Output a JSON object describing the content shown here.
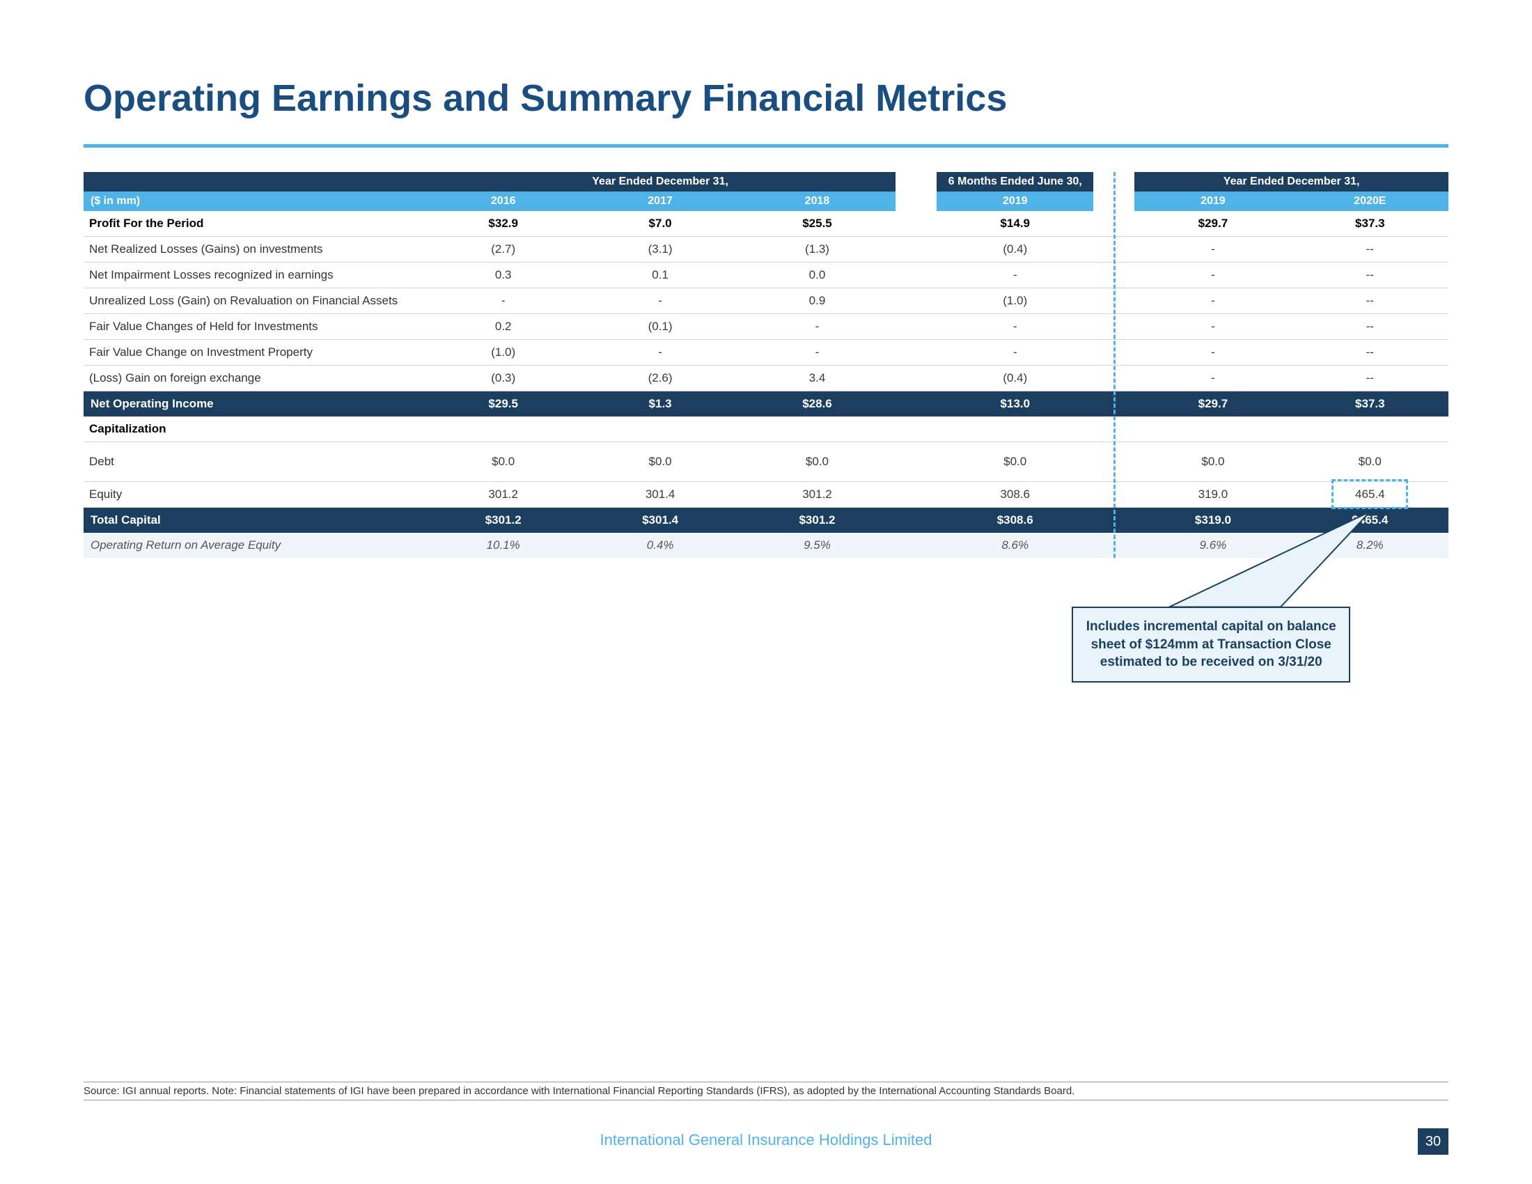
{
  "title": "Operating Earnings and Summary Financial Metrics",
  "unit_label": "($ in mm)",
  "period_headers": {
    "p1": "Year Ended December 31,",
    "p2": "6 Months Ended June 30,",
    "p3": "Year Ended December 31,"
  },
  "years": {
    "y2016": "2016",
    "y2017": "2017",
    "y2018": "2018",
    "y2019h": "2019",
    "y2019": "2019",
    "y2020e": "2020E"
  },
  "rows": {
    "profit": {
      "label": "Profit For the Period",
      "c1": "$32.9",
      "c2": "$7.0",
      "c3": "$25.5",
      "c4": "$14.9",
      "c5": "$29.7",
      "c6": "$37.3"
    },
    "nrl": {
      "label": "Net Realized Losses (Gains) on investments",
      "c1": "(2.7)",
      "c2": "(3.1)",
      "c3": "(1.3)",
      "c4": "(0.4)",
      "c5": "-",
      "c6": "--"
    },
    "nil": {
      "label": "Net Impairment Losses recognized in earnings",
      "c1": "0.3",
      "c2": "0.1",
      "c3": "0.0",
      "c4": "-",
      "c5": "-",
      "c6": "--"
    },
    "url": {
      "label": "Unrealized Loss (Gain) on Revaluation on Financial Assets",
      "c1": "-",
      "c2": "-",
      "c3": "0.9",
      "c4": "(1.0)",
      "c5": "-",
      "c6": "--"
    },
    "fvh": {
      "label": "Fair Value Changes of Held for Investments",
      "c1": "0.2",
      "c2": "(0.1)",
      "c3": "-",
      "c4": "-",
      "c5": "-",
      "c6": "--"
    },
    "fvp": {
      "label": "Fair Value Change on Investment Property",
      "c1": "(1.0)",
      "c2": "-",
      "c3": "-",
      "c4": "-",
      "c5": "-",
      "c6": "--"
    },
    "fx": {
      "label": "(Loss) Gain on foreign exchange",
      "c1": "(0.3)",
      "c2": "(2.6)",
      "c3": "3.4",
      "c4": "(0.4)",
      "c5": "-",
      "c6": "--"
    },
    "noi": {
      "label": "Net Operating Income",
      "c1": "$29.5",
      "c2": "$1.3",
      "c3": "$28.6",
      "c4": "$13.0",
      "c5": "$29.7",
      "c6": "$37.3"
    },
    "cap": {
      "label": "Capitalization"
    },
    "debt": {
      "label": "Debt",
      "c1": "$0.0",
      "c2": "$0.0",
      "c3": "$0.0",
      "c4": "$0.0",
      "c5": "$0.0",
      "c6": "$0.0"
    },
    "equity": {
      "label": "Equity",
      "c1": "301.2",
      "c2": "301.4",
      "c3": "301.2",
      "c4": "308.6",
      "c5": "319.0",
      "c6": "465.4"
    },
    "total": {
      "label": "Total Capital",
      "c1": "$301.2",
      "c2": "$301.4",
      "c3": "$301.2",
      "c4": "$308.6",
      "c5": "$319.0",
      "c6": "$465.4"
    },
    "roae": {
      "label": "Operating Return on Average Equity",
      "c1": "10.1%",
      "c2": "0.4%",
      "c3": "9.5%",
      "c4": "8.6%",
      "c5": "9.6%",
      "c6": "8.2%"
    }
  },
  "callout_text": "Includes incremental capital on balance sheet of $124mm at Transaction Close estimated to be received on 3/31/20",
  "source_note": "Source: IGI annual reports. Note: Financial statements of IGI have been prepared in accordance with International Financial Reporting Standards (IFRS), as adopted by the International Accounting Standards Board.",
  "footer_text": "International General Insurance Holdings Limited",
  "page_number": "30",
  "colors": {
    "title": "#1a4d80",
    "accent": "#4fb3e8",
    "navy": "#1c3f5f",
    "callout_bg": "#e9f3fa"
  }
}
